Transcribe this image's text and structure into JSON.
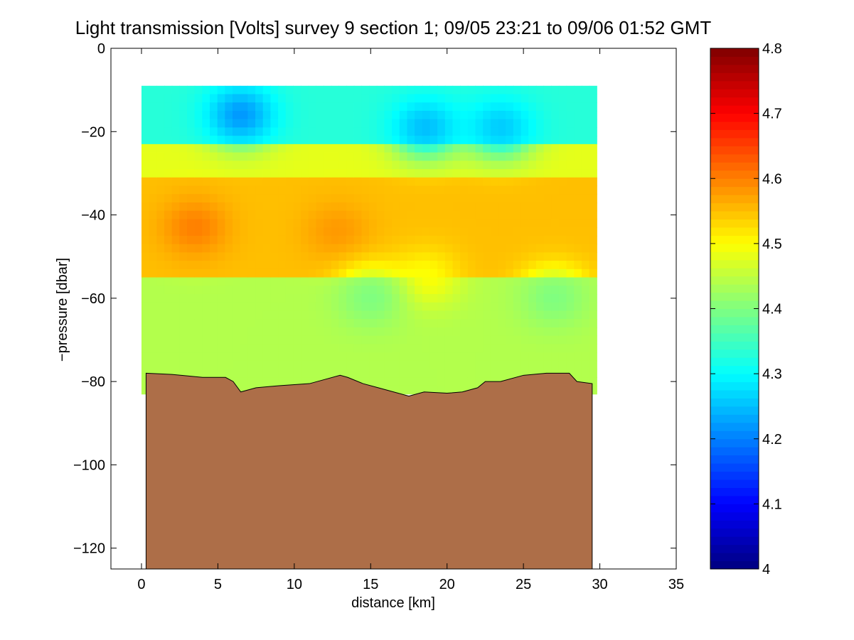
{
  "chart_data": {
    "type": "heatmap",
    "title": "Light transmission [Volts] survey 9 section 1; 09/05 23:21 to 09/06 01:52 GMT",
    "xlabel": "distance [km]",
    "ylabel": "−pressure [dbar]",
    "xlim": [
      -2,
      35
    ],
    "ylim": [
      -125,
      0
    ],
    "xticks": [
      0,
      5,
      10,
      15,
      20,
      25,
      30,
      35
    ],
    "xtick_labels": [
      "0",
      "5",
      "10",
      "15",
      "20",
      "25",
      "30",
      "35"
    ],
    "yticks": [
      0,
      -20,
      -40,
      -60,
      -80,
      -100,
      -120
    ],
    "ytick_labels": [
      "0",
      "−20",
      "−40",
      "−60",
      "−80",
      "−100",
      "−120"
    ],
    "grid": false,
    "colormap": "jet",
    "colorbar": {
      "clim": [
        4.0,
        4.8
      ],
      "ticks": [
        4.0,
        4.1,
        4.2,
        4.3,
        4.4,
        4.5,
        4.6,
        4.7,
        4.8
      ],
      "tick_labels": [
        "4",
        "4.1",
        "4.2",
        "4.3",
        "4.4",
        "4.5",
        "4.6",
        "4.7",
        "4.8"
      ]
    },
    "field": {
      "x_range": [
        0,
        29.8
      ],
      "depth_range": [
        -9,
        -83
      ],
      "description_bands": [
        {
          "depth": [
            -9,
            -22
          ],
          "value": 4.33
        },
        {
          "depth": [
            -22,
            -30
          ],
          "value": 4.48
        },
        {
          "depth": [
            -30,
            -55
          ],
          "value": 4.55
        },
        {
          "depth": [
            -55,
            -83
          ],
          "value": 4.44
        }
      ],
      "blobs": [
        {
          "x": 6.5,
          "depth": -16,
          "value": 4.22
        },
        {
          "x": 18.6,
          "depth": -19,
          "value": 4.25
        },
        {
          "x": 23.5,
          "depth": -19,
          "value": 4.26
        },
        {
          "x": 3.5,
          "depth": -43,
          "value": 4.6
        },
        {
          "x": 12.8,
          "depth": -44,
          "value": 4.58
        },
        {
          "x": 18.7,
          "depth": -55,
          "value": 4.5
        },
        {
          "x": 15,
          "depth": -60,
          "value": 4.4
        },
        {
          "x": 27,
          "depth": -60,
          "value": 4.4
        }
      ]
    },
    "bottom": {
      "color": "#AD6E48",
      "x": [
        0.3,
        2,
        4,
        5.5,
        6,
        6.5,
        7.5,
        9,
        11,
        12,
        13,
        13.5,
        14.5,
        15.5,
        16.5,
        17.5,
        18.5,
        20,
        21,
        22,
        22.5,
        23.5,
        25,
        26.5,
        28,
        28.5,
        29.5
      ],
      "depth": [
        -78,
        -78.3,
        -79,
        -79,
        -80,
        -82.5,
        -81.5,
        -81,
        -80.5,
        -79.5,
        -78.5,
        -79,
        -80.5,
        -81.5,
        -82.5,
        -83.5,
        -82.5,
        -82.8,
        -82.5,
        -81.5,
        -80,
        -80,
        -78.5,
        -78,
        -78,
        -80,
        -80.5
      ]
    }
  }
}
